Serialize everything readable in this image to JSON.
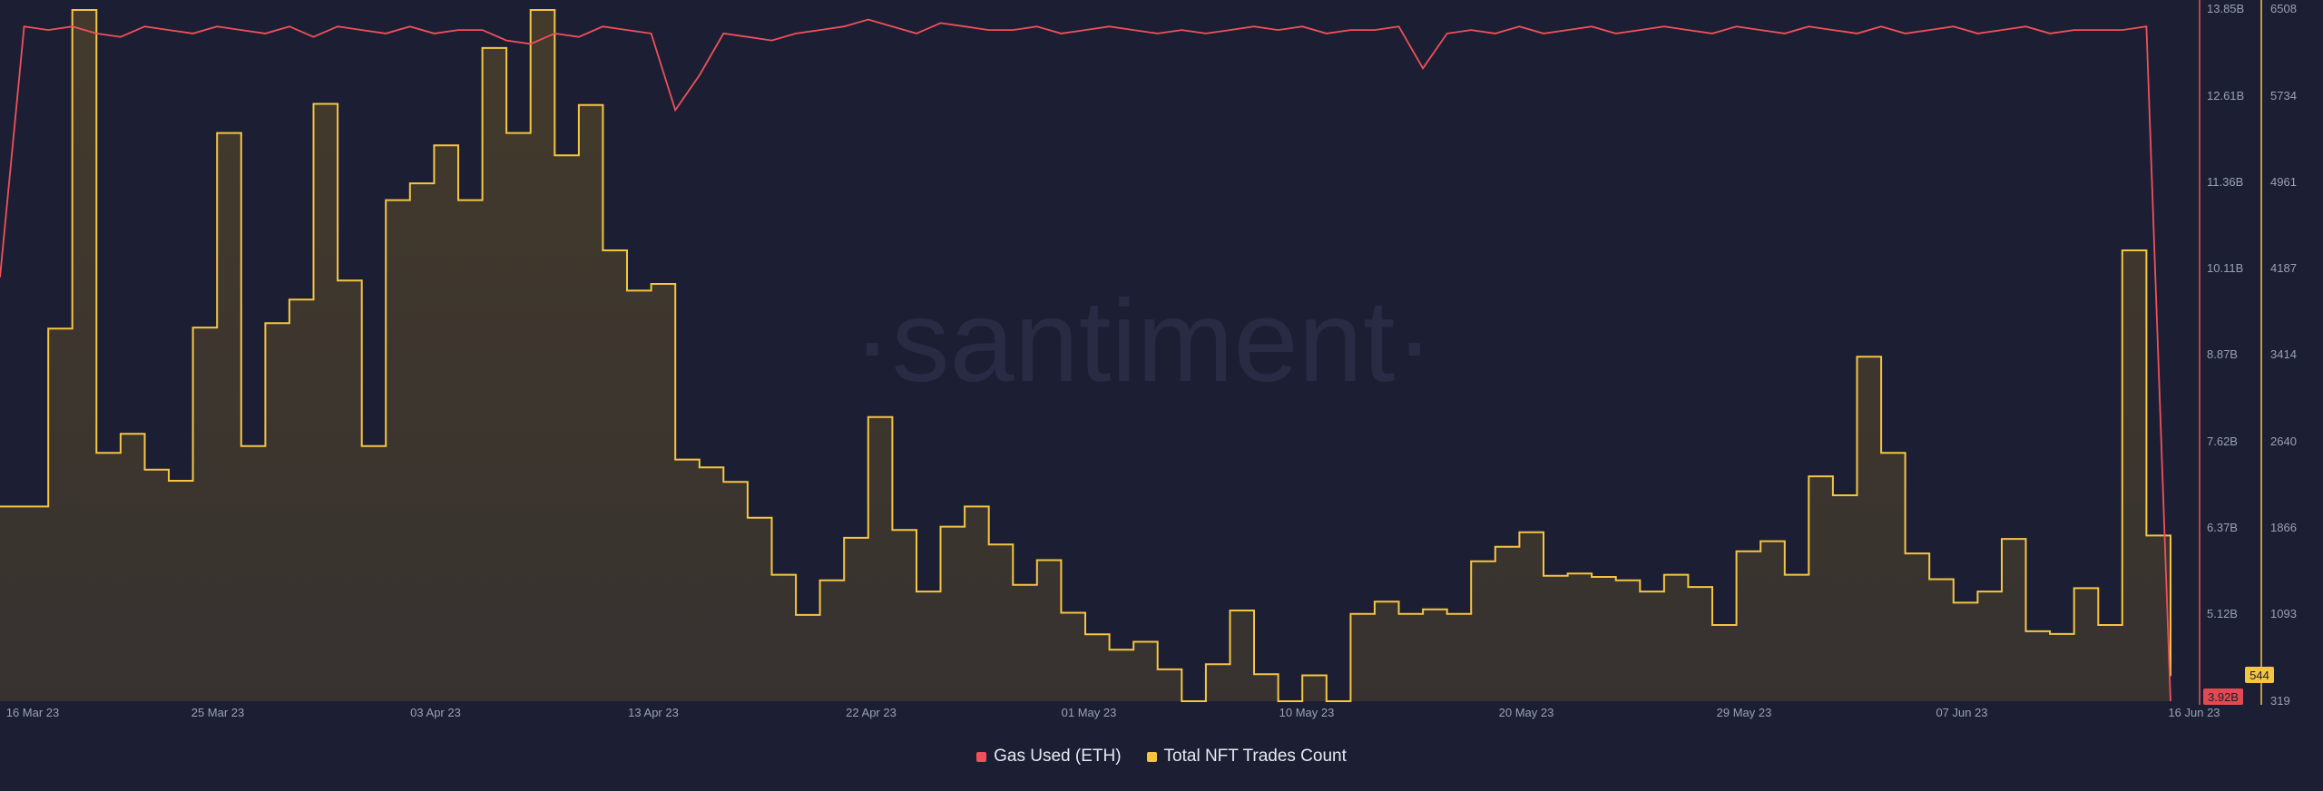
{
  "watermark": "·santiment·",
  "legend": [
    {
      "label": "Gas Used (ETH)",
      "color": "#f0505a"
    },
    {
      "label": "Total NFT Trades Count",
      "color": "#f5c542"
    }
  ],
  "current_values": {
    "gas": "3.92B",
    "trades": "544"
  },
  "chart_data": {
    "type": "line",
    "x_labels": [
      "16 Mar 23",
      "25 Mar 23",
      "03 Apr 23",
      "13 Apr 23",
      "22 Apr 23",
      "01 May 23",
      "10 May 23",
      "20 May 23",
      "29 May 23",
      "07 Jun 23",
      "16 Jun 23"
    ],
    "y_right_gas": {
      "ticks": [
        "13.85B",
        "12.61B",
        "11.36B",
        "10.11B",
        "8.87B",
        "7.62B",
        "6.37B",
        "5.12B",
        "3.92B"
      ],
      "range": [
        3.92,
        13.85
      ]
    },
    "y_right_trades": {
      "ticks": [
        "6508",
        "5734",
        "4961",
        "4187",
        "3414",
        "2640",
        "1866",
        "1093",
        "319"
      ],
      "range": [
        319,
        6508
      ]
    },
    "grid": false,
    "series": [
      {
        "name": "Total NFT Trades Count",
        "color": "#f5c542",
        "unit": "count",
        "x_start": "16 Mar 23",
        "step_days": 1,
        "values": [
          2060,
          2060,
          3650,
          6500,
          2540,
          2710,
          2390,
          2290,
          3660,
          5400,
          2600,
          3700,
          3910,
          5660,
          4080,
          2600,
          4800,
          4950,
          5290,
          4800,
          6160,
          5400,
          6500,
          5200,
          5650,
          4350,
          3990,
          4050,
          2480,
          2410,
          2280,
          1960,
          1450,
          1090,
          1400,
          1780,
          2860,
          1850,
          1300,
          1880,
          2060,
          1720,
          1360,
          1580,
          1110,
          917,
          780,
          850,
          604,
          319,
          650,
          1130,
          560,
          319,
          550,
          319,
          1100,
          1210,
          1100,
          1140,
          1100,
          1570,
          1700,
          1830,
          1440,
          1460,
          1430,
          1400,
          1300,
          1450,
          1340,
          1000,
          1660,
          1750,
          1450,
          2330,
          2160,
          3400,
          2540,
          1640,
          1410,
          1200,
          1300,
          1770,
          944,
          920,
          1330,
          1000,
          4350,
          1800,
          544
        ]
      },
      {
        "name": "Gas Used (ETH)",
        "color": "#f0505a",
        "unit": "ETH",
        "x_start": "16 Mar 23",
        "step_days": 1,
        "values": [
          10.0,
          13.6,
          13.55,
          13.6,
          13.5,
          13.45,
          13.6,
          13.55,
          13.5,
          13.6,
          13.55,
          13.5,
          13.6,
          13.45,
          13.6,
          13.55,
          13.5,
          13.6,
          13.5,
          13.55,
          13.55,
          13.4,
          13.35,
          13.5,
          13.45,
          13.6,
          13.55,
          13.5,
          12.4,
          12.9,
          13.5,
          13.45,
          13.4,
          13.5,
          13.55,
          13.6,
          13.7,
          13.6,
          13.5,
          13.65,
          13.6,
          13.55,
          13.55,
          13.6,
          13.5,
          13.55,
          13.6,
          13.55,
          13.5,
          13.55,
          13.5,
          13.55,
          13.6,
          13.55,
          13.6,
          13.5,
          13.55,
          13.55,
          13.6,
          13.0,
          13.5,
          13.55,
          13.5,
          13.6,
          13.5,
          13.55,
          13.6,
          13.5,
          13.55,
          13.6,
          13.55,
          13.5,
          13.6,
          13.55,
          13.5,
          13.6,
          13.55,
          13.5,
          13.6,
          13.5,
          13.55,
          13.6,
          13.5,
          13.55,
          13.6,
          13.5,
          13.55,
          13.55,
          13.55,
          13.6,
          3.92
        ]
      }
    ]
  }
}
